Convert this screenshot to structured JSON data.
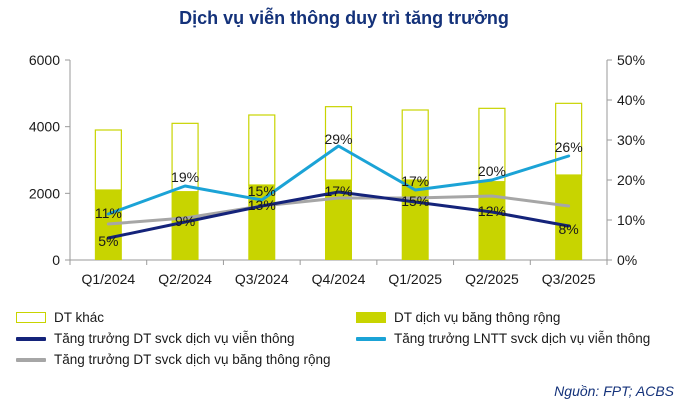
{
  "title": "Dịch vụ viễn thông duy trì tăng trưởng",
  "source": "Nguồn: FPT; ACBS",
  "chart_data": {
    "type": "bar",
    "categories": [
      "Q1/2024",
      "Q2/2024",
      "Q3/2024",
      "Q4/2024",
      "Q1/2025",
      "Q2/2025",
      "Q3/2025"
    ],
    "left_axis": {
      "min": 0,
      "max": 6000,
      "ticks": [
        "0",
        "2000",
        "4000",
        "6000"
      ]
    },
    "right_axis": {
      "min": 0,
      "max": 50,
      "ticks": [
        "0%",
        "10%",
        "20%",
        "30%",
        "40%",
        "50%"
      ]
    },
    "bars": {
      "broadband": {
        "name": "DT dịch vụ băng thông rộng",
        "color": "#c8d400",
        "values": [
          2100,
          2050,
          2250,
          2400,
          2400,
          2350,
          2550
        ]
      },
      "other": {
        "name": "DT khác",
        "color": "#c8d400",
        "values": [
          1800,
          2050,
          2100,
          2200,
          2100,
          2200,
          2150
        ]
      }
    },
    "lines": [
      {
        "name": "Tăng trưởng DT svck dịch vụ viễn thông",
        "color": "#14237a",
        "values": [
          5.5,
          9.5,
          13.5,
          17.0,
          14.5,
          12.0,
          8.5
        ],
        "labels": [
          "5%",
          "9%",
          "13%",
          "17%",
          "15%",
          "12%",
          "8%"
        ]
      },
      {
        "name": "Tăng trưởng LNTT svck dịch vụ viễn thông",
        "color": "#1ba3d6",
        "values": [
          11.5,
          18.5,
          15.0,
          28.5,
          17.5,
          20.0,
          26.0
        ],
        "labels": [
          "11%",
          "19%",
          "15%",
          "29%",
          "17%",
          "20%",
          "26%"
        ]
      },
      {
        "name": "Tăng trưởng DT svck dịch vụ băng thông rộng",
        "color": "#a6a6a6",
        "values": [
          9.0,
          10.5,
          13.5,
          15.5,
          15.5,
          16.0,
          13.5
        ],
        "labels": []
      }
    ],
    "grid": false,
    "legend_position": "bottom"
  }
}
